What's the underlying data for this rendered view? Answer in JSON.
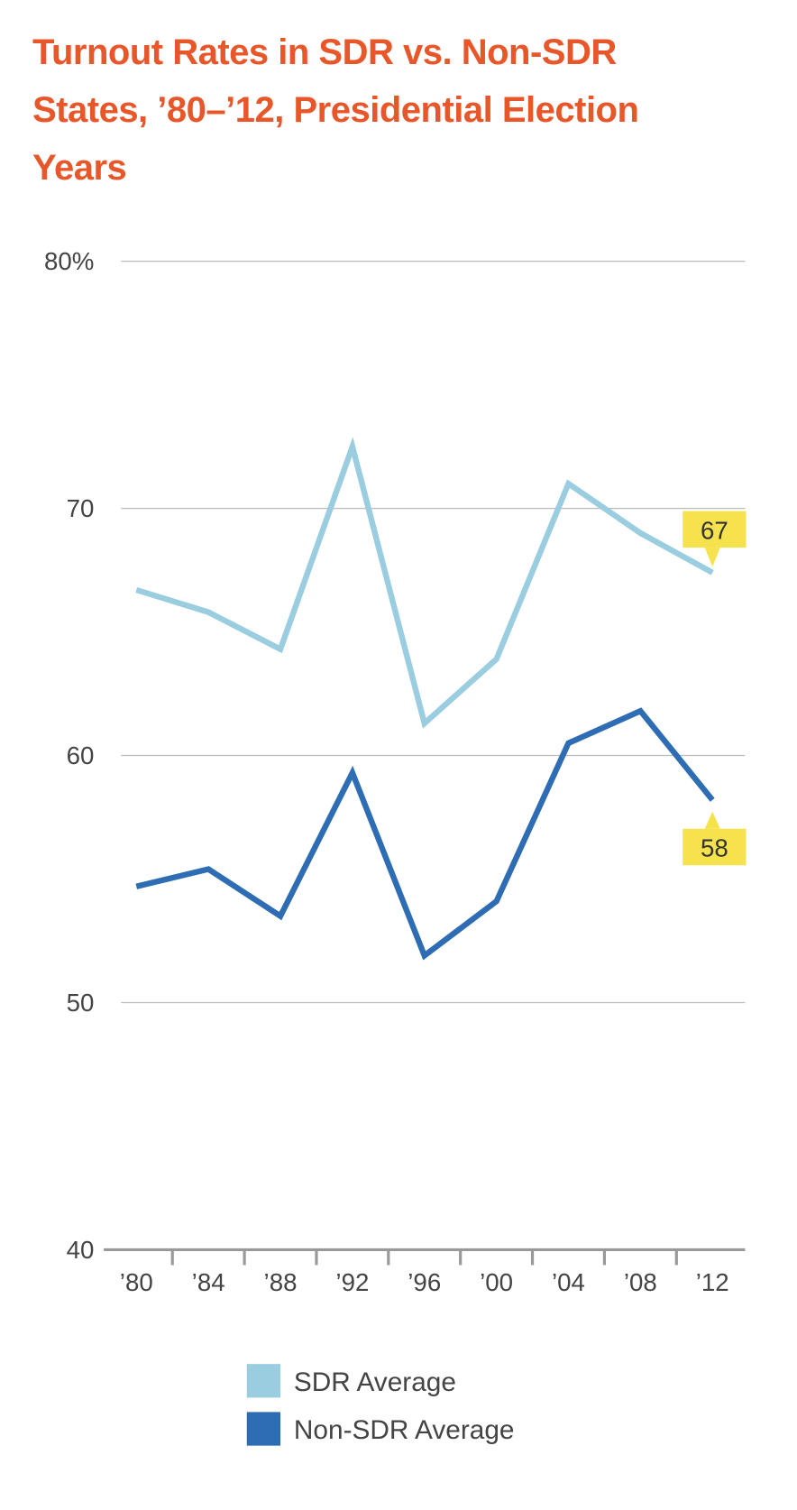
{
  "chart_data": {
    "type": "line",
    "title": "Turnout Rates in SDR vs. Non-SDR States, ’80–’12, Presidential Election Years",
    "categories": [
      "’80",
      "’84",
      "’88",
      "’92",
      "’96",
      "’00",
      "’04",
      "’08",
      "’12"
    ],
    "series": [
      {
        "name": "SDR Average",
        "color": "#9acde0",
        "values": [
          66.7,
          65.8,
          64.3,
          72.5,
          61.3,
          63.9,
          71.0,
          69.0,
          67.4
        ],
        "value_labels": [
          null,
          null,
          null,
          null,
          null,
          null,
          null,
          null,
          "67"
        ]
      },
      {
        "name": "Non-SDR Average",
        "color": "#2e6db4",
        "values": [
          54.7,
          55.4,
          53.5,
          59.3,
          51.9,
          54.1,
          60.5,
          61.8,
          58.2
        ],
        "value_labels": [
          null,
          null,
          null,
          null,
          null,
          null,
          null,
          null,
          "58"
        ]
      }
    ],
    "ylim": [
      40,
      80
    ],
    "yticks": [
      40,
      50,
      60,
      {
        "value": 80,
        "label": "80%"
      },
      70
    ],
    "grid": true,
    "annotation_color": "#f6e24c"
  }
}
